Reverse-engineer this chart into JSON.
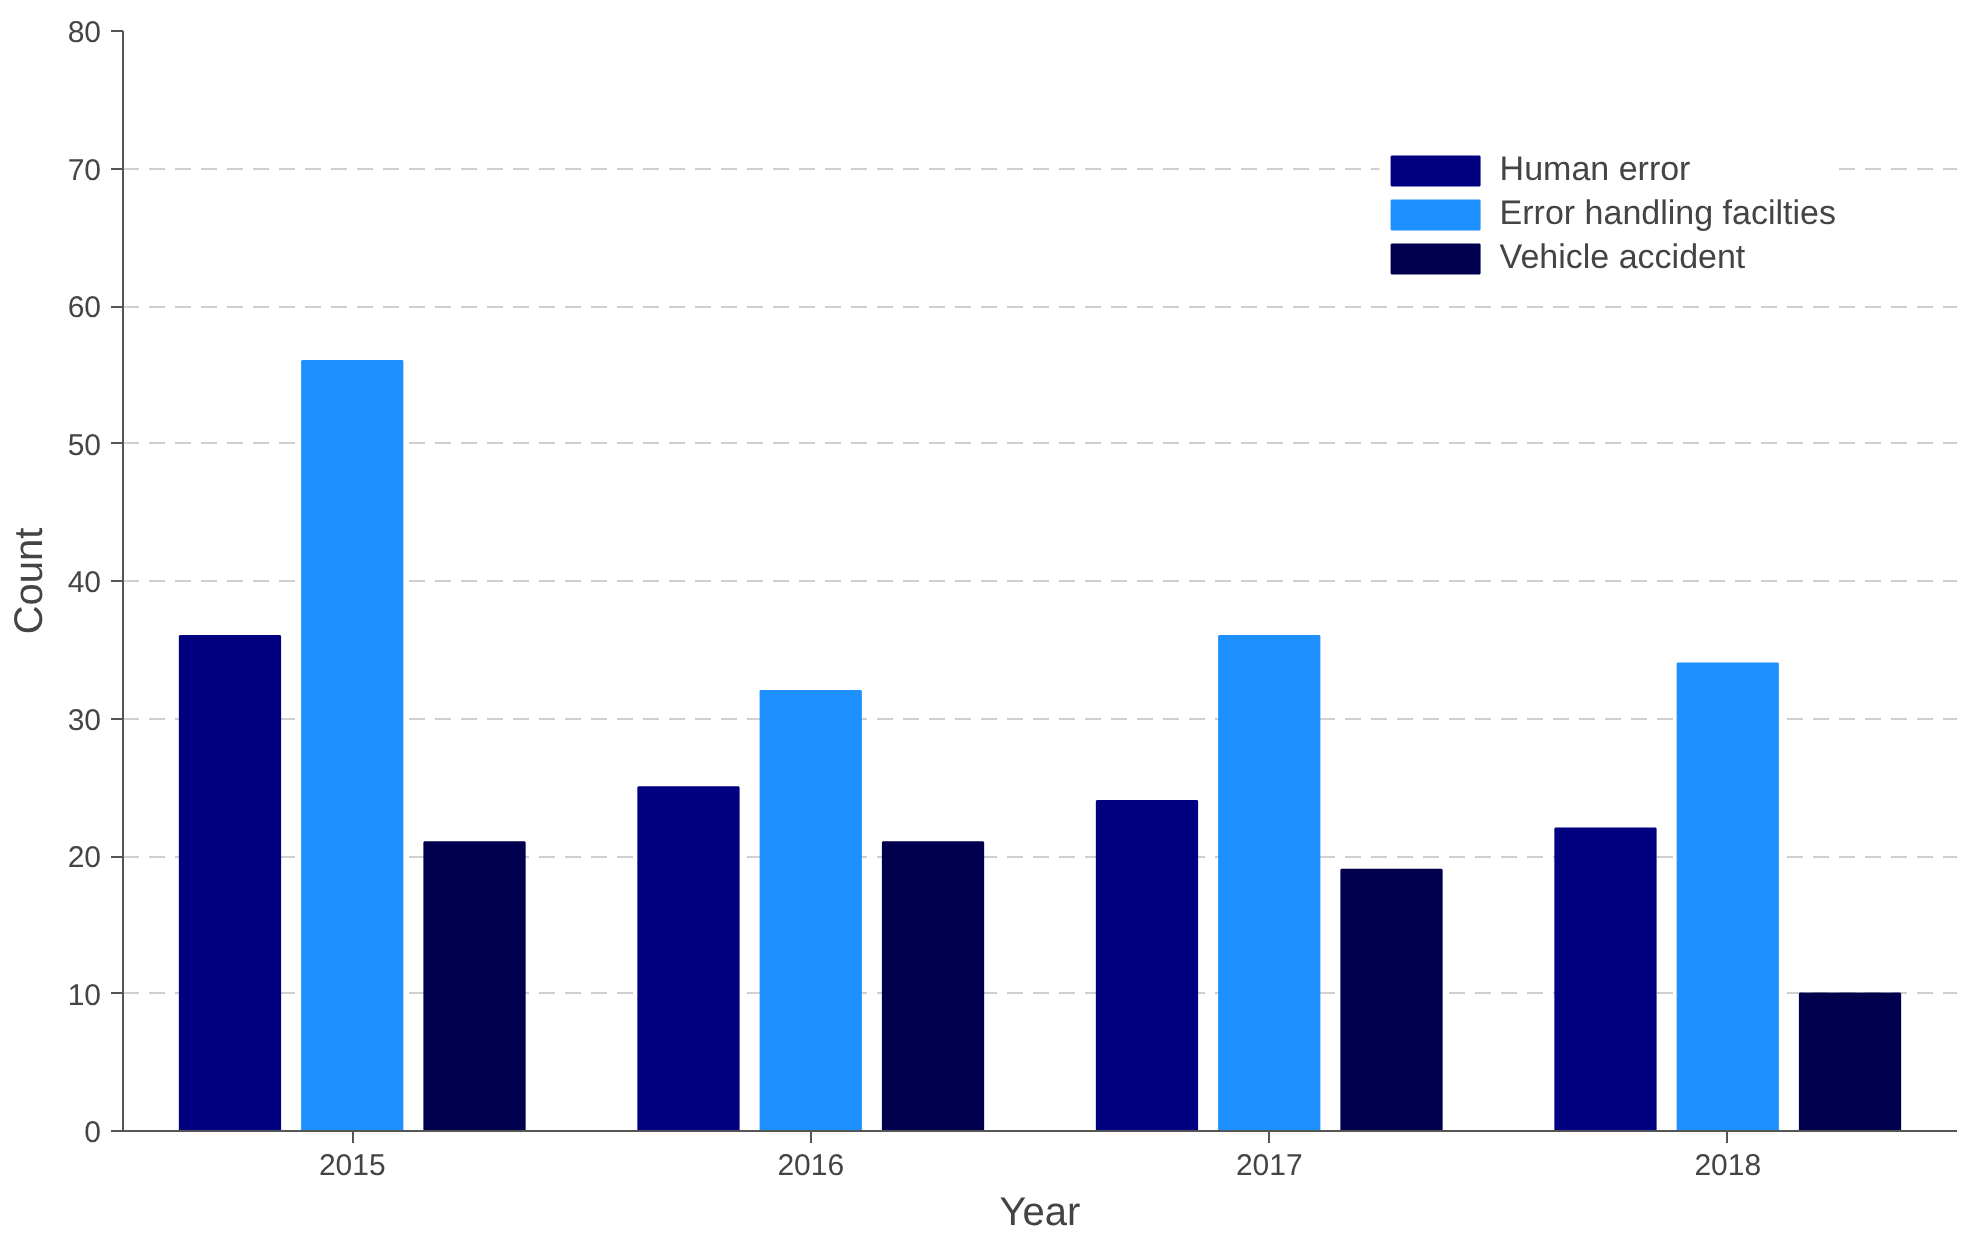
{
  "chart_data": {
    "type": "bar",
    "xlabel": "Year",
    "ylabel": "Count",
    "categories": [
      "2015",
      "2016",
      "2017",
      "2018"
    ],
    "series": [
      {
        "name": "Human error",
        "color": "#000080",
        "values": [
          36,
          25,
          24,
          22
        ]
      },
      {
        "name": "Error handling facilties",
        "color": "#1e90ff",
        "values": [
          56,
          32,
          36,
          34
        ]
      },
      {
        "name": "Vehicle accident",
        "color": "#00004f",
        "values": [
          21,
          21,
          19,
          10
        ]
      }
    ],
    "ylim": [
      0,
      80
    ],
    "yticks": [
      0,
      10,
      20,
      30,
      40,
      50,
      60,
      70,
      80
    ],
    "grid": "y",
    "legend": "top right"
  }
}
